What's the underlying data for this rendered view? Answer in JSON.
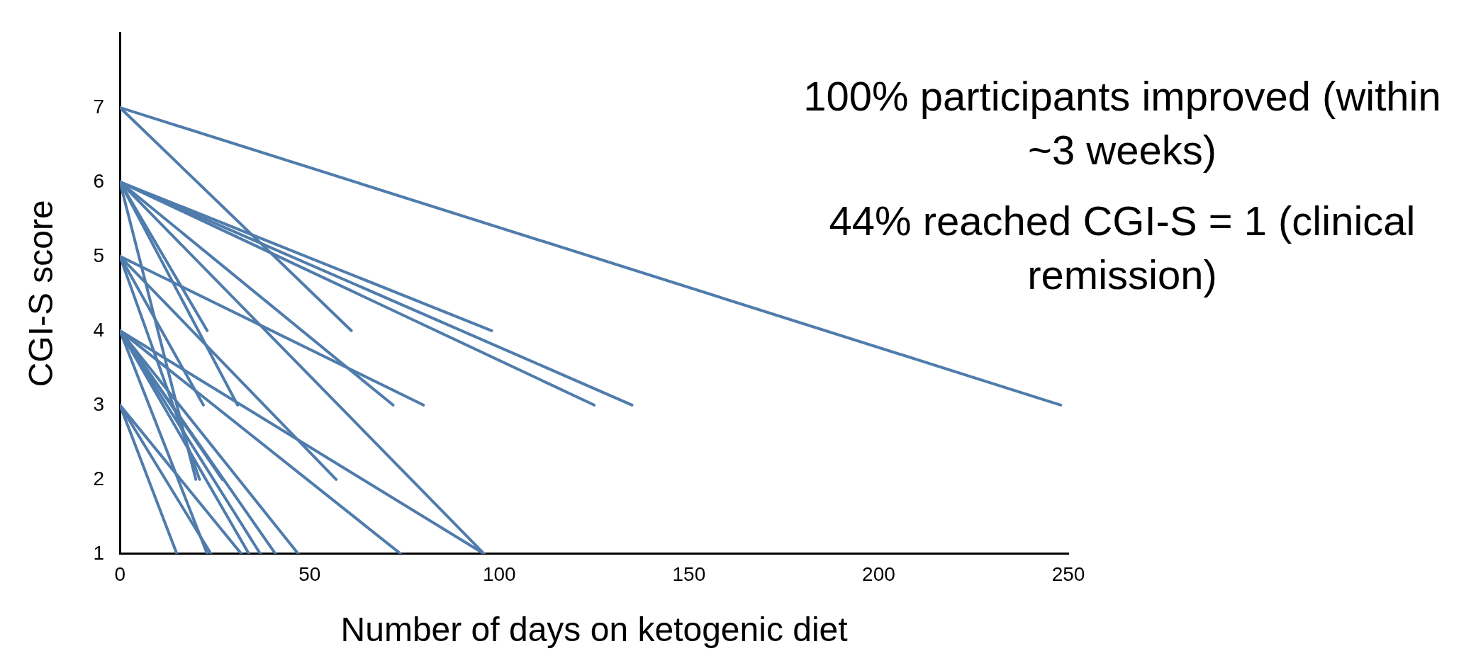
{
  "chart_data": {
    "type": "line",
    "xlabel": "Number of days on ketogenic diet",
    "ylabel": "CGI-S score",
    "annotations": [
      "100% participants improved (within ~3 weeks)",
      "44% reached CGI-S = 1 (clinical remission)"
    ],
    "xlim": [
      0,
      250
    ],
    "xticks": [
      0,
      50,
      100,
      150,
      200,
      250
    ],
    "ylim": [
      1,
      8
    ],
    "yticks": [
      1,
      2,
      3,
      4,
      5,
      6,
      7
    ],
    "grid": false,
    "marker": "none",
    "line_style": "solid",
    "series": [
      {
        "color": "#4f7cac",
        "x": [
          0,
          248
        ],
        "values": [
          7,
          3
        ]
      },
      {
        "color": "#4f7cac",
        "x": [
          0,
          61
        ],
        "values": [
          7,
          4
        ]
      },
      {
        "color": "#4f7cac",
        "x": [
          0,
          98
        ],
        "values": [
          6,
          4
        ]
      },
      {
        "color": "#4f7cac",
        "x": [
          0,
          135
        ],
        "values": [
          6,
          3
        ]
      },
      {
        "color": "#4f7cac",
        "x": [
          0,
          125
        ],
        "values": [
          6,
          3
        ]
      },
      {
        "color": "#4f7cac",
        "x": [
          0,
          72
        ],
        "values": [
          6,
          3
        ]
      },
      {
        "color": "#4f7cac",
        "x": [
          0,
          23
        ],
        "values": [
          6,
          4
        ]
      },
      {
        "color": "#4f7cac",
        "x": [
          0,
          31
        ],
        "values": [
          6,
          3
        ]
      },
      {
        "color": "#4f7cac",
        "x": [
          0,
          20
        ],
        "values": [
          6,
          2
        ]
      },
      {
        "color": "#4f7cac",
        "x": [
          0,
          96
        ],
        "values": [
          6,
          1
        ]
      },
      {
        "color": "#4f7cac",
        "x": [
          0,
          57
        ],
        "values": [
          5,
          2
        ]
      },
      {
        "color": "#4f7cac",
        "x": [
          0,
          80
        ],
        "values": [
          5,
          3
        ]
      },
      {
        "color": "#4f7cac",
        "x": [
          0,
          22
        ],
        "values": [
          5,
          3
        ]
      },
      {
        "color": "#4f7cac",
        "x": [
          0,
          21
        ],
        "values": [
          5,
          2
        ]
      },
      {
        "color": "#4f7cac",
        "x": [
          0,
          27
        ],
        "values": [
          4,
          2
        ]
      },
      {
        "color": "#4f7cac",
        "x": [
          0,
          23
        ],
        "values": [
          4,
          1
        ]
      },
      {
        "color": "#4f7cac",
        "x": [
          0,
          34
        ],
        "values": [
          4,
          1
        ]
      },
      {
        "color": "#4f7cac",
        "x": [
          0,
          37
        ],
        "values": [
          4,
          1
        ]
      },
      {
        "color": "#4f7cac",
        "x": [
          0,
          41
        ],
        "values": [
          4,
          1
        ]
      },
      {
        "color": "#4f7cac",
        "x": [
          0,
          47
        ],
        "values": [
          4,
          1
        ]
      },
      {
        "color": "#4f7cac",
        "x": [
          0,
          74
        ],
        "values": [
          4,
          1
        ]
      },
      {
        "color": "#4f7cac",
        "x": [
          0,
          96
        ],
        "values": [
          4,
          1
        ]
      },
      {
        "color": "#4f7cac",
        "x": [
          0,
          15
        ],
        "values": [
          3,
          1
        ]
      },
      {
        "color": "#4f7cac",
        "x": [
          0,
          24
        ],
        "values": [
          3,
          1
        ]
      },
      {
        "color": "#4f7cac",
        "x": [
          0,
          32
        ],
        "values": [
          3,
          1
        ]
      }
    ]
  }
}
